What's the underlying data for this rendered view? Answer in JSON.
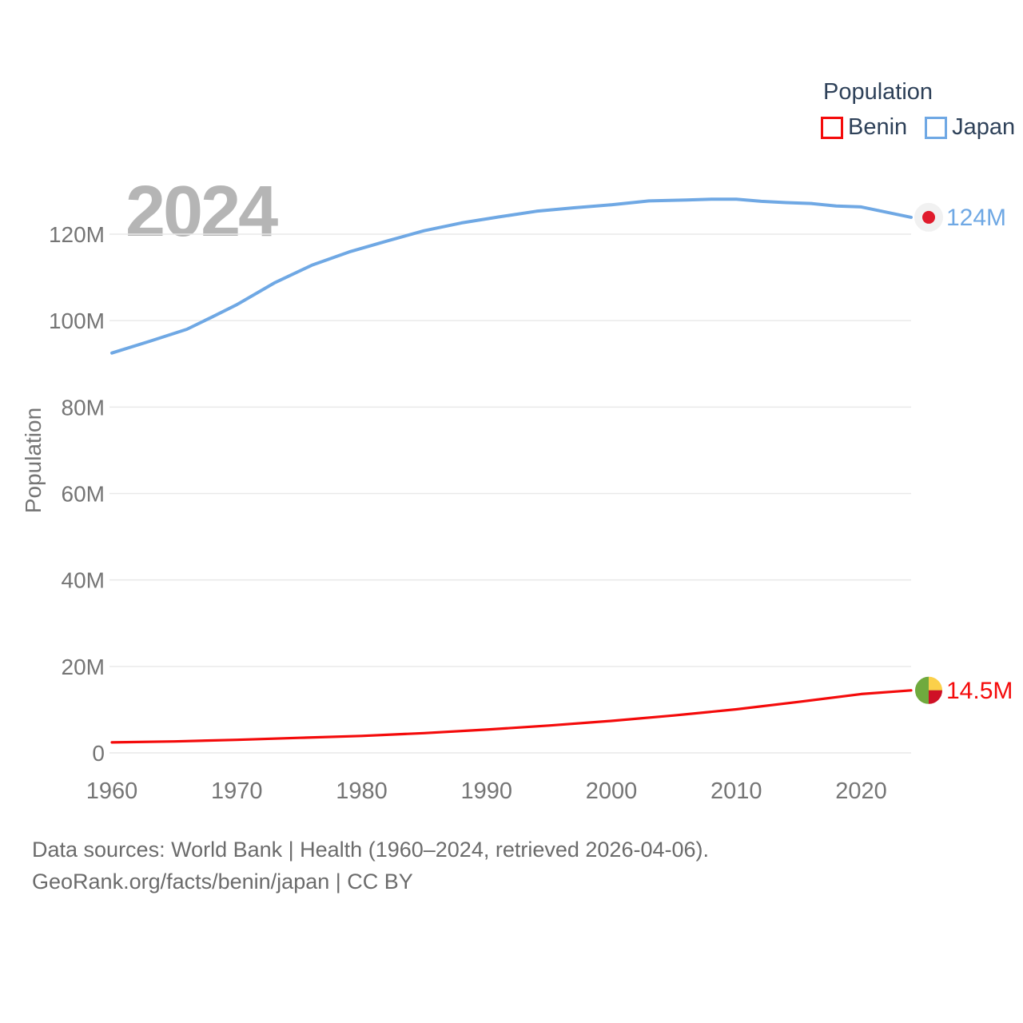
{
  "watermark_year": "2024",
  "legend": {
    "title": "Population",
    "items": [
      {
        "label": "Benin",
        "color": "#f40b0b"
      },
      {
        "label": "Japan",
        "color": "#6fa8e4"
      }
    ]
  },
  "y_axis": {
    "title": "Population"
  },
  "footer": {
    "line1": "Data sources: World Bank | Health (1960–2024, retrieved 2026-04-06).",
    "line2": "GeoRank.org/facts/benin/japan | CC BY"
  },
  "flags": {
    "japan": {
      "bg": "#f1f1f1",
      "dot": "#e01b2c"
    },
    "benin": {
      "green": "#6faa3e",
      "yellow": "#fbd04a",
      "red": "#cf1126"
    }
  },
  "chart_data": {
    "type": "line",
    "title": "2024",
    "xlabel": "",
    "ylabel": "Population",
    "grid": "horizontal",
    "legend_position": "top-right",
    "xlim": [
      1960,
      2024
    ],
    "ylim": [
      0,
      130
    ],
    "x_ticks": [
      1960,
      1970,
      1980,
      1990,
      2000,
      2010,
      2020
    ],
    "y_ticks": [
      {
        "v": 0,
        "label": "0"
      },
      {
        "v": 20,
        "label": "20M"
      },
      {
        "v": 40,
        "label": "40M"
      },
      {
        "v": 60,
        "label": "60M"
      },
      {
        "v": 80,
        "label": "80M"
      },
      {
        "v": 100,
        "label": "100M"
      },
      {
        "v": 120,
        "label": "120M"
      }
    ],
    "series": [
      {
        "name": "Benin",
        "color": "#f40b0b",
        "end_label": "14.5M",
        "end_value": 14.5,
        "flag": "benin",
        "points": [
          [
            1960,
            2.43
          ],
          [
            1965,
            2.64
          ],
          [
            1970,
            3.02
          ],
          [
            1975,
            3.47
          ],
          [
            1980,
            3.92
          ],
          [
            1985,
            4.57
          ],
          [
            1990,
            5.38
          ],
          [
            1995,
            6.32
          ],
          [
            2000,
            7.39
          ],
          [
            2005,
            8.65
          ],
          [
            2010,
            10.07
          ],
          [
            2015,
            11.79
          ],
          [
            2020,
            13.61
          ],
          [
            2024,
            14.46
          ]
        ]
      },
      {
        "name": "Japan",
        "color": "#6fa8e4",
        "end_label": "124M",
        "end_value": 124,
        "flag": "japan",
        "points": [
          [
            1960,
            92.5
          ],
          [
            1963,
            95.2
          ],
          [
            1966,
            98.0
          ],
          [
            1968,
            100.8
          ],
          [
            1970,
            103.7
          ],
          [
            1973,
            108.7
          ],
          [
            1976,
            112.8
          ],
          [
            1979,
            115.9
          ],
          [
            1982,
            118.4
          ],
          [
            1985,
            120.8
          ],
          [
            1988,
            122.6
          ],
          [
            1991,
            124.0
          ],
          [
            1994,
            125.3
          ],
          [
            1997,
            126.1
          ],
          [
            2000,
            126.8
          ],
          [
            2003,
            127.7
          ],
          [
            2006,
            127.9
          ],
          [
            2008,
            128.1
          ],
          [
            2010,
            128.1
          ],
          [
            2012,
            127.6
          ],
          [
            2014,
            127.3
          ],
          [
            2016,
            127.1
          ],
          [
            2018,
            126.5
          ],
          [
            2020,
            126.3
          ],
          [
            2022,
            125.1
          ],
          [
            2024,
            123.9
          ]
        ]
      }
    ]
  }
}
